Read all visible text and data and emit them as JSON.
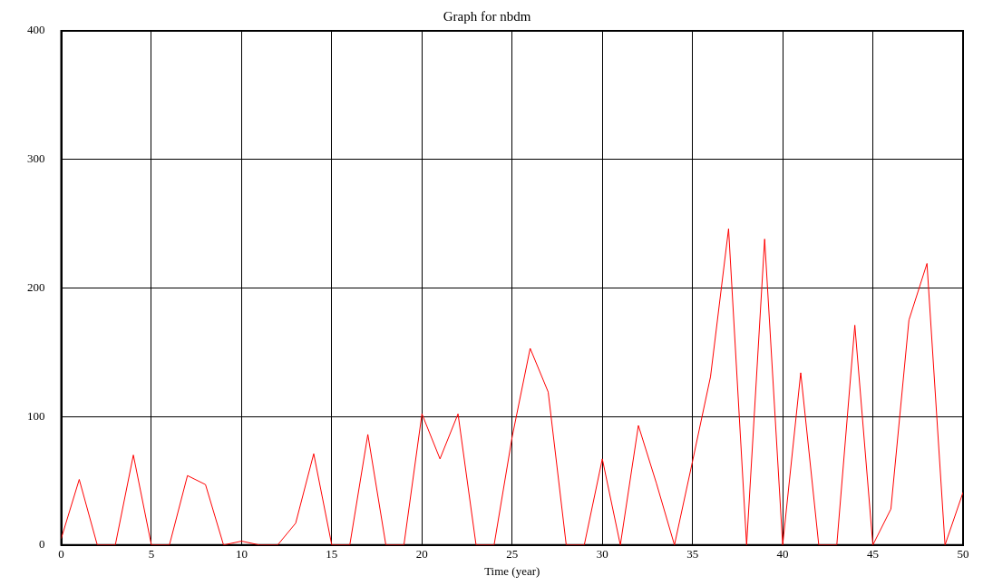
{
  "chart_data": {
    "type": "line",
    "title": "Graph for nbdm",
    "xlabel": "Time (year)",
    "x": [
      0,
      1,
      2,
      3,
      4,
      5,
      6,
      7,
      8,
      9,
      10,
      11,
      12,
      13,
      14,
      15,
      16,
      17,
      18,
      19,
      20,
      21,
      22,
      23,
      24,
      25,
      26,
      27,
      28,
      29,
      30,
      31,
      32,
      33,
      34,
      35,
      36,
      37,
      38,
      39,
      40,
      41,
      42,
      43,
      44,
      45,
      46,
      47,
      48,
      49,
      50
    ],
    "series": [
      {
        "color": "#ff0000",
        "values": [
          5,
          51,
          0,
          0,
          70,
          0,
          0,
          54,
          47,
          0,
          3,
          0,
          0,
          17,
          71,
          0,
          0,
          86,
          0,
          0,
          102,
          67,
          102,
          0,
          0,
          84,
          153,
          119,
          0,
          0,
          67,
          0,
          93,
          48,
          0,
          65,
          131,
          246,
          0,
          238,
          0,
          134,
          0,
          0,
          171,
          0,
          28,
          175,
          219,
          0,
          41
        ]
      }
    ],
    "xlim": [
      0,
      50
    ],
    "xticks": [
      0,
      5,
      10,
      15,
      20,
      25,
      30,
      35,
      40,
      45,
      50
    ],
    "ylim": [
      0,
      400
    ],
    "yticks": [
      0,
      100,
      200,
      300,
      400
    ],
    "grid": true,
    "legend": false,
    "marker": "none",
    "line_style": "solid"
  }
}
